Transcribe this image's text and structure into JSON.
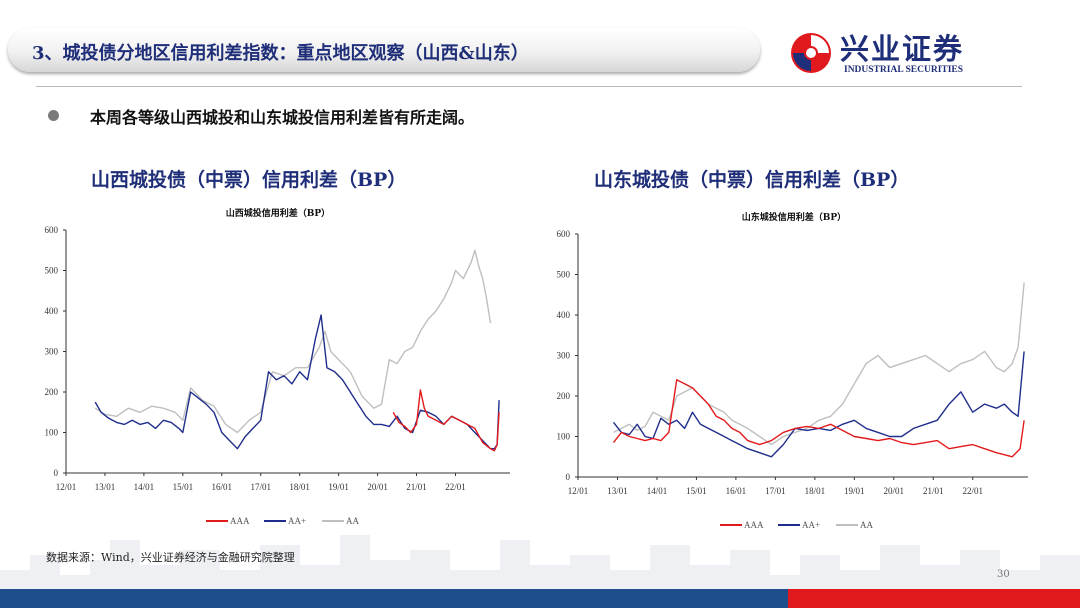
{
  "header": {
    "title": "3、城投债分地区信用利差指数：重点地区观察（山西&山东）",
    "logo_cn": "兴业证券",
    "logo_en": "INDUSTRIAL SECURITIES"
  },
  "bullet": "本周各等级山西城投和山东城投信用利差皆有所走阔。",
  "left_subtitle": "山西城投债（中票）信用利差（BP）",
  "right_subtitle": "山东城投债（中票）信用利差（BP）",
  "source": "数据来源：Wind，兴业证券经济与金融研究院整理",
  "page_number": "30",
  "colors": {
    "AAA": "#e31a1c",
    "AA+": "#1f2e8c",
    "AA": "#bfbfbf",
    "brand": "#1f2e78"
  },
  "chart_data": [
    {
      "type": "line",
      "title": "山西城投信用利差（BP）",
      "xlabel": "",
      "ylabel": "",
      "ylim": [
        0,
        600
      ],
      "yticks": [
        "0",
        "100",
        "200",
        "300",
        "400",
        "500",
        "600"
      ],
      "xticks": [
        "12/01",
        "13/01",
        "14/01",
        "15/01",
        "16/01",
        "17/01",
        "18/01",
        "19/01",
        "20/01",
        "21/01",
        "22/01"
      ],
      "xlim": [
        2012.0,
        2023.4
      ],
      "legend_position": "bottom",
      "grid": false,
      "series": [
        {
          "name": "AAA",
          "x": [
            2020.4,
            2020.55,
            2020.7,
            2020.85,
            2021.0,
            2021.1,
            2021.2,
            2021.3,
            2021.5,
            2021.7,
            2021.9,
            2022.1,
            2022.3,
            2022.5,
            2022.7,
            2022.9,
            2023.0,
            2023.07,
            2023.12
          ],
          "y": [
            150,
            125,
            115,
            100,
            120,
            205,
            160,
            140,
            130,
            120,
            140,
            130,
            120,
            110,
            75,
            60,
            55,
            70,
            150
          ]
        },
        {
          "name": "AA+",
          "x": [
            2012.75,
            2012.9,
            2013.1,
            2013.3,
            2013.5,
            2013.7,
            2013.9,
            2014.1,
            2014.3,
            2014.5,
            2014.7,
            2014.9,
            2015.0,
            2015.2,
            2015.4,
            2015.6,
            2015.8,
            2016.0,
            2016.2,
            2016.4,
            2016.6,
            2016.8,
            2017.0,
            2017.2,
            2017.4,
            2017.6,
            2017.8,
            2018.0,
            2018.2,
            2018.4,
            2018.55,
            2018.7,
            2018.9,
            2019.1,
            2019.3,
            2019.5,
            2019.7,
            2019.9,
            2020.1,
            2020.3,
            2020.5,
            2020.7,
            2020.9,
            2021.1,
            2021.3,
            2021.5,
            2021.7,
            2021.9,
            2022.1,
            2022.3,
            2022.5,
            2022.7,
            2022.9,
            2023.0,
            2023.07,
            2023.12
          ],
          "y": [
            175,
            150,
            135,
            125,
            120,
            130,
            120,
            125,
            110,
            130,
            125,
            110,
            100,
            200,
            185,
            170,
            150,
            100,
            80,
            60,
            90,
            110,
            130,
            250,
            230,
            240,
            220,
            250,
            230,
            330,
            390,
            260,
            250,
            230,
            200,
            170,
            140,
            120,
            120,
            115,
            140,
            110,
            100,
            155,
            150,
            140,
            120,
            140,
            130,
            120,
            100,
            80,
            60,
            60,
            70,
            180
          ]
        },
        {
          "name": "AA",
          "x": [
            2012.75,
            2013.0,
            2013.3,
            2013.6,
            2013.9,
            2014.2,
            2014.5,
            2014.8,
            2015.0,
            2015.2,
            2015.5,
            2015.8,
            2016.1,
            2016.4,
            2016.7,
            2017.0,
            2017.3,
            2017.6,
            2017.9,
            2018.2,
            2018.5,
            2018.65,
            2018.8,
            2019.0,
            2019.3,
            2019.6,
            2019.9,
            2020.1,
            2020.3,
            2020.5,
            2020.7,
            2020.9,
            2021.1,
            2021.3,
            2021.5,
            2021.7,
            2021.9,
            2022.0,
            2022.2,
            2022.4,
            2022.5,
            2022.6,
            2022.7,
            2022.8,
            2022.9
          ],
          "y": [
            160,
            145,
            140,
            160,
            150,
            165,
            160,
            150,
            130,
            210,
            180,
            165,
            120,
            100,
            130,
            150,
            250,
            240,
            260,
            260,
            310,
            350,
            300,
            280,
            250,
            190,
            160,
            170,
            280,
            270,
            300,
            310,
            350,
            380,
            400,
            430,
            470,
            500,
            480,
            520,
            550,
            510,
            480,
            430,
            370
          ]
        }
      ]
    },
    {
      "type": "line",
      "title": "山东城投信用利差（BP）",
      "xlabel": "",
      "ylabel": "",
      "ylim": [
        0,
        600
      ],
      "yticks": [
        "0",
        "100",
        "200",
        "300",
        "400",
        "500",
        "600"
      ],
      "xticks": [
        "12/01",
        "13/01",
        "14/01",
        "15/01",
        "16/01",
        "17/01",
        "18/01",
        "19/01",
        "20/01",
        "21/01",
        "22/01"
      ],
      "xlim": [
        2012.0,
        2023.4
      ],
      "legend_position": "bottom",
      "grid": false,
      "series": [
        {
          "name": "AAA",
          "x": [
            2012.9,
            2013.1,
            2013.3,
            2013.5,
            2013.7,
            2013.9,
            2014.1,
            2014.3,
            2014.5,
            2014.7,
            2014.9,
            2015.1,
            2015.3,
            2015.5,
            2015.7,
            2015.9,
            2016.1,
            2016.3,
            2016.6,
            2016.9,
            2017.2,
            2017.5,
            2017.8,
            2018.1,
            2018.4,
            2018.7,
            2019.0,
            2019.3,
            2019.6,
            2019.9,
            2020.2,
            2020.5,
            2020.8,
            2021.1,
            2021.4,
            2021.7,
            2022.0,
            2022.3,
            2022.6,
            2022.8,
            2023.0,
            2023.2,
            2023.3
          ],
          "y": [
            85,
            110,
            100,
            95,
            90,
            95,
            90,
            110,
            240,
            230,
            220,
            200,
            180,
            150,
            140,
            120,
            110,
            90,
            80,
            90,
            110,
            120,
            125,
            120,
            130,
            115,
            100,
            95,
            90,
            95,
            85,
            80,
            85,
            90,
            70,
            75,
            80,
            70,
            60,
            55,
            50,
            70,
            140
          ]
        },
        {
          "name": "AA+",
          "x": [
            2012.9,
            2013.1,
            2013.3,
            2013.5,
            2013.7,
            2013.9,
            2014.1,
            2014.3,
            2014.5,
            2014.7,
            2014.9,
            2015.1,
            2015.3,
            2015.5,
            2015.7,
            2015.9,
            2016.1,
            2016.3,
            2016.6,
            2016.9,
            2017.2,
            2017.5,
            2017.8,
            2018.1,
            2018.4,
            2018.7,
            2019.0,
            2019.3,
            2019.6,
            2019.9,
            2020.2,
            2020.5,
            2020.8,
            2021.1,
            2021.4,
            2021.7,
            2022.0,
            2022.3,
            2022.6,
            2022.8,
            2023.0,
            2023.15,
            2023.3
          ],
          "y": [
            135,
            110,
            105,
            130,
            100,
            95,
            145,
            130,
            140,
            120,
            160,
            130,
            120,
            110,
            100,
            90,
            80,
            70,
            60,
            50,
            80,
            120,
            115,
            120,
            115,
            130,
            140,
            120,
            110,
            100,
            100,
            120,
            130,
            140,
            180,
            210,
            160,
            180,
            170,
            180,
            160,
            150,
            310
          ]
        },
        {
          "name": "AA",
          "x": [
            2012.9,
            2013.1,
            2013.3,
            2013.5,
            2013.7,
            2013.9,
            2014.1,
            2014.3,
            2014.5,
            2014.7,
            2014.9,
            2015.1,
            2015.3,
            2015.5,
            2015.7,
            2015.9,
            2016.1,
            2016.3,
            2016.6,
            2016.9,
            2017.2,
            2017.5,
            2017.8,
            2018.1,
            2018.4,
            2018.7,
            2019.0,
            2019.3,
            2019.6,
            2019.9,
            2020.2,
            2020.5,
            2020.8,
            2021.1,
            2021.4,
            2021.7,
            2022.0,
            2022.3,
            2022.6,
            2022.8,
            2023.0,
            2023.15,
            2023.3
          ],
          "y": [
            110,
            120,
            130,
            115,
            125,
            160,
            150,
            140,
            200,
            210,
            220,
            200,
            180,
            170,
            160,
            140,
            130,
            120,
            100,
            80,
            100,
            110,
            120,
            140,
            150,
            180,
            230,
            280,
            300,
            270,
            280,
            290,
            300,
            280,
            260,
            280,
            290,
            310,
            270,
            260,
            280,
            320,
            480
          ]
        }
      ]
    }
  ]
}
